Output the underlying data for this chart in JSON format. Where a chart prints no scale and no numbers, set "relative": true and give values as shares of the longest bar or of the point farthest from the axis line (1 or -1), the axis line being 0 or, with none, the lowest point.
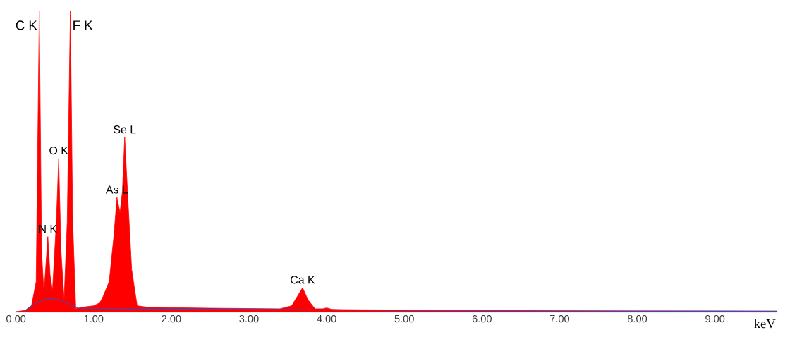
{
  "chart_data": {
    "type": "area",
    "relative": true,
    "xlabel": "keV",
    "xlim": [
      0,
      9.8
    ],
    "xticks": [
      {
        "value": 0,
        "label": "0.00"
      },
      {
        "value": 1,
        "label": "1.00"
      },
      {
        "value": 2,
        "label": "2.00"
      },
      {
        "value": 3,
        "label": "3.00"
      },
      {
        "value": 4,
        "label": "4.00"
      },
      {
        "value": 5,
        "label": "5.00"
      },
      {
        "value": 6,
        "label": "6.00"
      },
      {
        "value": 7,
        "label": "7.00"
      },
      {
        "value": 8,
        "label": "8.00"
      },
      {
        "value": 9,
        "label": "9.00"
      }
    ],
    "series": [
      {
        "color": "#ff0000",
        "x": [
          0.0,
          0.12,
          0.2,
          0.26,
          0.3,
          0.33,
          0.36,
          0.41,
          0.44,
          0.47,
          0.52,
          0.55,
          0.58,
          0.62,
          0.66,
          0.7,
          0.73,
          0.77,
          0.85,
          1.0,
          1.08,
          1.12,
          1.2,
          1.26,
          1.3,
          1.34,
          1.37,
          1.4,
          1.44,
          1.49,
          1.56,
          1.7,
          2.5,
          3.4,
          3.55,
          3.62,
          3.69,
          3.76,
          3.85,
          3.95,
          4.0,
          4.07,
          4.2,
          5.0,
          6.0,
          7.0,
          8.0,
          9.0,
          9.8
        ],
        "values": [
          0.0,
          0.005,
          0.02,
          0.1,
          1,
          0.2,
          0.06,
          0.25,
          0.12,
          0.07,
          0.3,
          0.51,
          0.2,
          0.04,
          0.3,
          1,
          0.3,
          0.01,
          0.015,
          0.02,
          0.03,
          0.05,
          0.1,
          0.25,
          0.38,
          0.33,
          0.4,
          0.58,
          0.38,
          0.14,
          0.02,
          0.015,
          0.012,
          0.01,
          0.02,
          0.05,
          0.08,
          0.04,
          0.01,
          0.01,
          0.013,
          0.008,
          0.007,
          0.006,
          0.005,
          0.003,
          0.002,
          0.002,
          0.002
        ]
      },
      {
        "type": "line",
        "color": "#5a3fa0",
        "x": [
          0.1,
          0.2,
          0.35,
          0.5,
          0.65,
          0.8,
          1.5,
          3.0,
          5.0,
          7.0,
          9.8
        ],
        "values": [
          0.0,
          0.02,
          0.04,
          0.045,
          0.03,
          0.012,
          0.01,
          0.008,
          0.005,
          0.003,
          0.002
        ]
      }
    ],
    "annotations": [
      {
        "text": "C  K",
        "x": 0.3,
        "y": 1
      },
      {
        "text": "F  K",
        "x": 0.7,
        "y": 1
      },
      {
        "text": "N  K",
        "x": 0.41,
        "y": 0.25
      },
      {
        "text": "O  K",
        "x": 0.55,
        "y": 0.51
      },
      {
        "text": "As L",
        "x": 1.3,
        "y": 0.38
      },
      {
        "text": "Se L",
        "x": 1.4,
        "y": 0.58
      },
      {
        "text": "Ca K",
        "x": 3.69,
        "y": 0.08
      }
    ]
  }
}
